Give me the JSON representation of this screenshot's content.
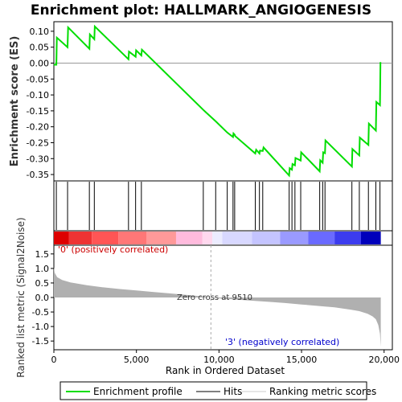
{
  "chart_data": [
    {
      "type": "line",
      "title": "Enrichment plot: HALLMARK_ANGIOGENESIS",
      "ylabel": "Enrichment score (ES)",
      "ylim": [
        -0.37,
        0.13
      ],
      "yticks": [
        0.1,
        0.05,
        0.0,
        -0.05,
        -0.1,
        -0.15,
        -0.2,
        -0.25,
        -0.3,
        -0.35
      ],
      "xlim": [
        0,
        20500
      ],
      "series": [
        {
          "name": "Enrichment profile",
          "color": "#00dd00",
          "x": [
            0,
            150,
            180,
            830,
            860,
            2150,
            2180,
            2450,
            2480,
            4520,
            4550,
            4950,
            4980,
            5300,
            5330,
            9050,
            9800,
            10500,
            10850,
            10880,
            10950,
            10980,
            12200,
            12250,
            12450,
            12480,
            12650,
            12700,
            14250,
            14280,
            14420,
            14450,
            14600,
            14630,
            14950,
            14980,
            16100,
            16130,
            16280,
            16310,
            16420,
            16450,
            18050,
            18080,
            18500,
            18530,
            19050,
            19080,
            19500,
            19530,
            19750,
            19780
          ],
          "y": [
            -0.005,
            -0.005,
            0.08,
            0.05,
            0.112,
            0.045,
            0.09,
            0.075,
            0.115,
            0.012,
            0.036,
            0.02,
            0.04,
            0.024,
            0.042,
            -0.147,
            -0.183,
            -0.218,
            -0.232,
            -0.221,
            -0.225,
            -0.229,
            -0.284,
            -0.272,
            -0.284,
            -0.275,
            -0.276,
            -0.265,
            -0.353,
            -0.33,
            -0.335,
            -0.317,
            -0.321,
            -0.298,
            -0.306,
            -0.28,
            -0.34,
            -0.305,
            -0.313,
            -0.28,
            -0.283,
            -0.243,
            -0.325,
            -0.27,
            -0.29,
            -0.234,
            -0.257,
            -0.19,
            -0.212,
            -0.122,
            -0.132,
            0.003
          ]
        }
      ]
    },
    {
      "type": "scatter",
      "name": "Hits",
      "x": [
        150,
        830,
        2150,
        2450,
        4520,
        4950,
        5300,
        9050,
        9800,
        10500,
        10850,
        10950,
        12200,
        12450,
        12650,
        14250,
        14420,
        14600,
        14950,
        16100,
        16280,
        16420,
        18050,
        18500,
        19050,
        19500,
        19750
      ]
    },
    {
      "type": "area",
      "name": "Ranking metric scores",
      "ylabel": "Ranked list metric (Signal2Noise)",
      "xlabel": "Rank in Ordered Dataset",
      "xlim": [
        0,
        20500
      ],
      "ylim": [
        -1.8,
        1.8
      ],
      "xticks": [
        0,
        5000,
        10000,
        15000,
        20000
      ],
      "xtick_labels": [
        "0",
        "5,000",
        "10,000",
        "15,000",
        "20,000"
      ],
      "yticks": [
        1.5,
        1.0,
        0.5,
        0.0,
        -0.5,
        -1.0,
        -1.5
      ],
      "x": [
        0,
        50,
        200,
        500,
        1000,
        2000,
        3000,
        4000,
        5000,
        6000,
        7000,
        8000,
        9000,
        9510,
        10000,
        11000,
        12000,
        13000,
        14000,
        15000,
        16000,
        17000,
        18000,
        18500,
        19000,
        19300,
        19500,
        19650,
        19750,
        19800
      ],
      "y": [
        1.05,
        0.85,
        0.7,
        0.6,
        0.52,
        0.42,
        0.35,
        0.29,
        0.24,
        0.19,
        0.14,
        0.09,
        0.04,
        0.0,
        -0.03,
        -0.07,
        -0.11,
        -0.15,
        -0.19,
        -0.24,
        -0.29,
        -0.34,
        -0.42,
        -0.47,
        -0.56,
        -0.65,
        -0.75,
        -0.95,
        -1.25,
        -1.7
      ],
      "pos_label": "'0' (positively correlated)",
      "neg_label": "'3' (negatively correlated)",
      "zero_cross_label": "Zero cross at 9510",
      "zero_cross": 9510
    }
  ],
  "legend": {
    "items": [
      "Enrichment profile",
      "Hits",
      "Ranking metric scores"
    ]
  },
  "colors": {
    "profile": "#00dd00",
    "hits": "#000000",
    "metric": "#b0b0b0",
    "pos_text": "#cc0000",
    "neg_text": "#0000cc"
  },
  "heatbar": {
    "segments": [
      {
        "from": 0,
        "to": 900,
        "color": "#dd0000"
      },
      {
        "from": 900,
        "to": 2300,
        "color": "#ee3333"
      },
      {
        "from": 2300,
        "to": 3900,
        "color": "#ff5555"
      },
      {
        "from": 3900,
        "to": 5600,
        "color": "#ff7777"
      },
      {
        "from": 5600,
        "to": 7400,
        "color": "#ff9999"
      },
      {
        "from": 7400,
        "to": 9000,
        "color": "#ffbbdd"
      },
      {
        "from": 9000,
        "to": 9600,
        "color": "#ffd8ee"
      },
      {
        "from": 9600,
        "to": 10200,
        "color": "#ececff"
      },
      {
        "from": 10200,
        "to": 12000,
        "color": "#d8d8ff"
      },
      {
        "from": 12000,
        "to": 13700,
        "color": "#c4c4ff"
      },
      {
        "from": 13700,
        "to": 15400,
        "color": "#9a9aff"
      },
      {
        "from": 15400,
        "to": 17000,
        "color": "#6a6aff"
      },
      {
        "from": 17000,
        "to": 18600,
        "color": "#3c3cee"
      },
      {
        "from": 18600,
        "to": 19800,
        "color": "#0000bb"
      }
    ]
  }
}
